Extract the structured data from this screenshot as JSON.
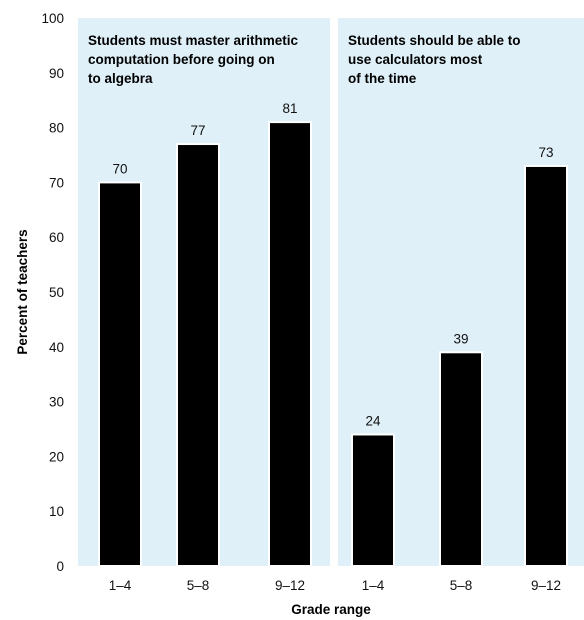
{
  "chart_data": {
    "type": "bar",
    "ylabel": "Percent of teachers",
    "xlabel": "Grade range",
    "ylim": [
      0,
      100
    ],
    "yticks": [
      0,
      10,
      20,
      30,
      40,
      50,
      60,
      70,
      80,
      90,
      100
    ],
    "grid": false,
    "background_color": "#dff0f8",
    "bar_color": "#000000",
    "panels": [
      {
        "title_lines": [
          "Students must master arithmetic",
          "computation before going on",
          "to algebra"
        ],
        "categories": [
          "1–4",
          "5–8",
          "9–12"
        ],
        "values": [
          70,
          77,
          81
        ]
      },
      {
        "title_lines": [
          "Students should be able to",
          "use calculators most",
          "of the time"
        ],
        "categories": [
          "1–4",
          "5–8",
          "9–12"
        ],
        "values": [
          24,
          39,
          73
        ]
      }
    ]
  }
}
